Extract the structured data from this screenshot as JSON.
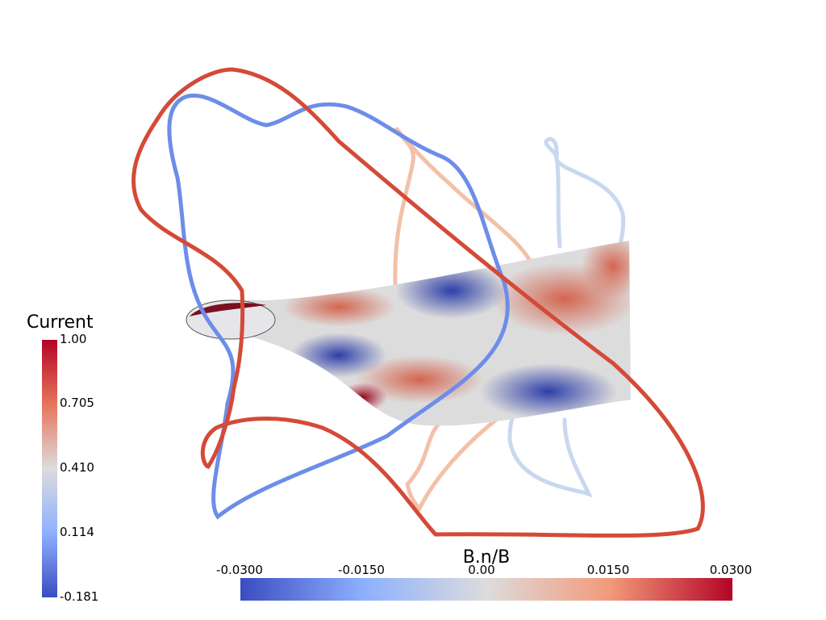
{
  "current_bar": {
    "title": "Current",
    "ticks": [
      "1.00",
      "0.705",
      "0.410",
      "0.114",
      "-0.181"
    ]
  },
  "bn_bar": {
    "title": "B.n/B",
    "ticks": [
      "-0.0300",
      "-0.0150",
      "0.00",
      "0.0150",
      "0.0300"
    ]
  },
  "colors": {
    "coil_red": "#d44a38",
    "coil_blue": "#6d8de8",
    "coil_salmon": "#f2c1a8",
    "coil_lightblue": "#c8d8f0",
    "cool": "#3b4cc0",
    "neutral": "#dddddd",
    "warm": "#b40426"
  }
}
